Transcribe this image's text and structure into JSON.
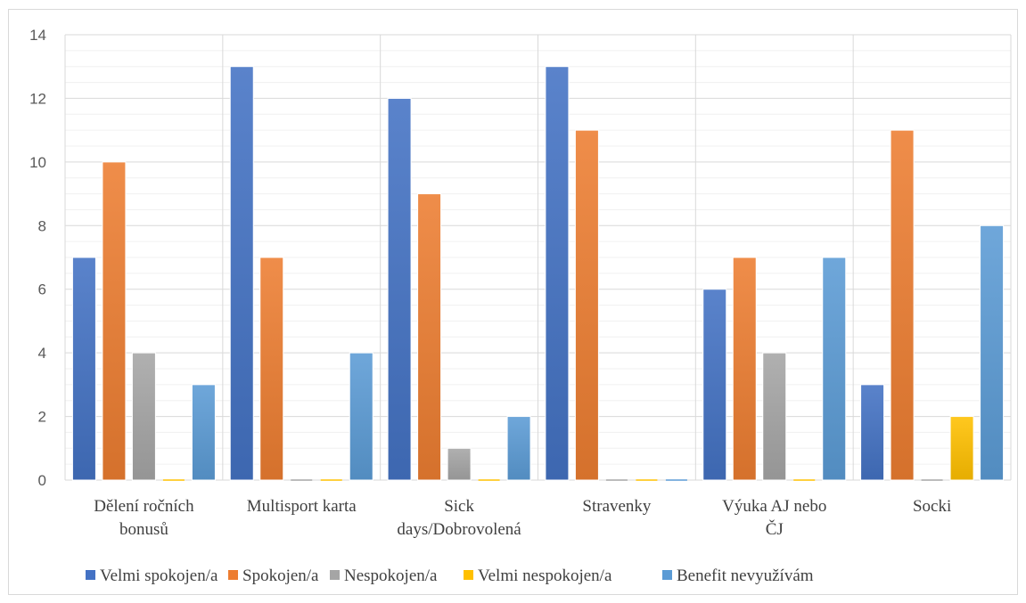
{
  "chart_data": {
    "type": "bar",
    "categories": [
      [
        "Dělení ročních",
        "bonusů"
      ],
      [
        "Multisport karta"
      ],
      [
        "Sick",
        "days/Dobrovolená"
      ],
      [
        "Stravenky"
      ],
      [
        "Výuka AJ nebo",
        "ČJ"
      ],
      [
        "Socki"
      ]
    ],
    "series": [
      {
        "name": "Velmi spokojen/a",
        "color": "#4472c4",
        "values": [
          7,
          13,
          12,
          13,
          6,
          3
        ]
      },
      {
        "name": "Spokojen/a",
        "color": "#ed7d31",
        "values": [
          10,
          7,
          9,
          11,
          7,
          11
        ]
      },
      {
        "name": "Nespokojen/a",
        "color": "#a5a5a5",
        "values": [
          4,
          0,
          1,
          0,
          4,
          0
        ]
      },
      {
        "name": "Velmi nespokojen/a",
        "color": "#ffc000",
        "values": [
          0,
          0,
          0,
          0,
          0,
          2
        ]
      },
      {
        "name": "Benefit nevyužívám",
        "color": "#5b9bd5",
        "values": [
          3,
          4,
          2,
          0,
          7,
          8
        ]
      }
    ],
    "ylim": [
      0,
      14
    ],
    "yticks": [
      0,
      2,
      4,
      6,
      8,
      10,
      12,
      14
    ],
    "grid": true,
    "legend_position": "bottom",
    "title": "",
    "xlabel": "",
    "ylabel": ""
  }
}
